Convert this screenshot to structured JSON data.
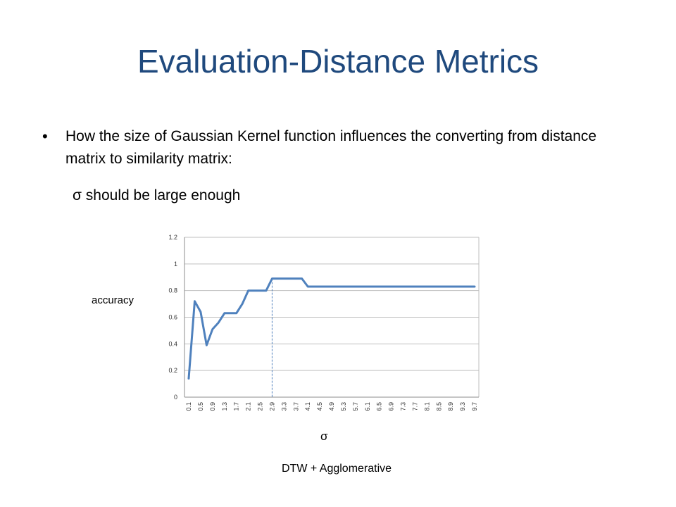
{
  "slide": {
    "title": "Evaluation-Distance Metrics",
    "bullet": "How the size of Gaussian Kernel function influences the converting from distance matrix to similarity matrix:",
    "sub_point": "σ should be large enough",
    "caption": "DTW + Agglomerative"
  },
  "colors": {
    "title": "#1f497d",
    "line": "#4f81bd",
    "grid": "#bfbfbf"
  },
  "chart_data": {
    "type": "line",
    "xlabel": "σ",
    "ylabel": "accuracy",
    "ylim": [
      0,
      1.2
    ],
    "yticks": [
      "0",
      "0.2",
      "0.4",
      "0.6",
      "0.8",
      "1",
      "1.2"
    ],
    "grid": true,
    "x": [
      "0.1",
      "0.3",
      "0.5",
      "0.7",
      "0.9",
      "1.1",
      "1.3",
      "1.5",
      "1.7",
      "1.9",
      "2.1",
      "2.3",
      "2.5",
      "2.7",
      "2.9",
      "3.1",
      "3.3",
      "3.5",
      "3.7",
      "3.9",
      "4.1",
      "4.3",
      "4.5",
      "4.7",
      "4.9",
      "5.1",
      "5.3",
      "5.5",
      "5.7",
      "5.9",
      "6.1",
      "6.3",
      "6.5",
      "6.7",
      "6.9",
      "7.1",
      "7.3",
      "7.5",
      "7.7",
      "7.9",
      "8.1",
      "8.3",
      "8.5",
      "8.7",
      "8.9",
      "9.1",
      "9.3",
      "9.5",
      "9.7"
    ],
    "xtick_labels": [
      "0.1",
      "0.5",
      "0.9",
      "1.3",
      "1.7",
      "2.1",
      "2.5",
      "2.9",
      "3.3",
      "3.7",
      "4.1",
      "4.5",
      "4.9",
      "5.3",
      "5.7",
      "6.1",
      "6.5",
      "6.9",
      "7.3",
      "7.7",
      "8.1",
      "8.5",
      "8.9",
      "9.3",
      "9.7"
    ],
    "series": [
      {
        "values": [
          0.14,
          0.72,
          0.64,
          0.39,
          0.51,
          0.56,
          0.63,
          0.63,
          0.63,
          0.7,
          0.8,
          0.8,
          0.8,
          0.8,
          0.89,
          0.89,
          0.89,
          0.89,
          0.89,
          0.89,
          0.83,
          0.83,
          0.83,
          0.83,
          0.83,
          0.83,
          0.83,
          0.83,
          0.83,
          0.83,
          0.83,
          0.83,
          0.83,
          0.83,
          0.83,
          0.83,
          0.83,
          0.83,
          0.83,
          0.83,
          0.83,
          0.83,
          0.83,
          0.83,
          0.83,
          0.83,
          0.83,
          0.83,
          0.83
        ]
      }
    ],
    "annotation": {
      "type": "vertical-dashed-line",
      "x": "2.9"
    }
  }
}
